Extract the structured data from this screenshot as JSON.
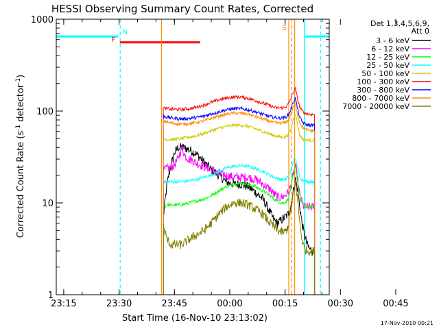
{
  "chart_data": {
    "type": "line",
    "title": "HESSI Observing Summary Count Rates, Corrected",
    "xlabel": "Start Time (16-Nov-10 23:13:02)",
    "ylabel_main": "Corrected Count Rate (s",
    "ylabel_sup1": "-1",
    "ylabel_mid": " detector",
    "ylabel_sup2": "-1",
    "ylabel_end": ")",
    "y_scale": "log",
    "ylim": [
      1,
      1000
    ],
    "xlim_minutes": [
      -2.03,
      71.97
    ],
    "x_ticks": [
      {
        "label": "23:15",
        "m": 0
      },
      {
        "label": "23:30",
        "m": 15
      },
      {
        "label": "23:45",
        "m": 30
      },
      {
        "label": "00:00",
        "m": 45
      },
      {
        "label": "00:15",
        "m": 60
      },
      {
        "label": "00:30",
        "m": 75
      },
      {
        "label": "00:45",
        "m": 90
      }
    ],
    "y_ticks": [
      {
        "label": "1",
        "v": 1
      },
      {
        "label": "10",
        "v": 10
      },
      {
        "label": "100",
        "v": 100
      },
      {
        "label": "1000",
        "v": 1000
      }
    ],
    "legend_header": [
      "Det 1,3,4,5,6,9,",
      "Att 0"
    ],
    "legend_position": "right",
    "series": [
      {
        "name": "3 - 6 keV",
        "color": "#000000",
        "x_min": [
          27.0,
          28.0,
          29.0,
          30.0,
          31.0,
          32.5,
          34.0,
          36.0,
          38.0,
          40.0,
          42.0,
          44.0,
          46.0,
          48.0,
          50.0,
          52.0,
          54.0,
          55.5,
          57.0,
          58.0,
          59.0,
          60.0,
          60.8,
          61.5,
          62.2,
          62.8,
          63.4,
          64.0,
          64.6,
          65.2,
          66.0,
          67.0,
          68.0
        ],
        "values": [
          7.0,
          16.0,
          25.0,
          35.0,
          40.0,
          40.0,
          38.0,
          34.0,
          28.0,
          23.0,
          20.0,
          17.0,
          16.0,
          16.0,
          15.0,
          13.0,
          11.0,
          8.5,
          6.5,
          6.0,
          6.5,
          7.0,
          7.5,
          9.0,
          13.0,
          18.0,
          14.0,
          9.0,
          6.0,
          4.5,
          3.5,
          3.0,
          3.0
        ]
      },
      {
        "name": "6 - 12 keV",
        "color": "#ff00ff",
        "x_min": [
          27.0,
          28.0,
          29.0,
          30.0,
          31.0,
          32.0,
          33.0,
          34.0,
          35.0,
          36.0,
          37.0,
          38.0,
          40.0,
          42.0,
          44.0,
          46.0,
          48.0,
          50.0,
          52.0,
          54.0,
          56.0,
          57.0,
          58.0,
          59.0,
          60.0,
          60.8,
          61.5,
          62.2,
          62.8,
          63.4,
          64.0,
          64.6,
          65.2,
          66.0,
          67.0,
          68.0
        ],
        "values": [
          22.0,
          24.0,
          24.0,
          26.0,
          30.0,
          40.0,
          32.0,
          30.0,
          29.0,
          27.0,
          26.0,
          25.0,
          23.0,
          21.0,
          20.0,
          19.0,
          19.0,
          19.0,
          18.0,
          16.0,
          14.0,
          12.5,
          11.5,
          11.5,
          12.0,
          13.0,
          15.0,
          20.0,
          26.0,
          18.0,
          12.0,
          10.0,
          9.0,
          9.0,
          9.0,
          9.0
        ]
      },
      {
        "name": "12 - 25 keV",
        "color": "#00ff00",
        "x_min": [
          27.0,
          28.0,
          30.0,
          32.0,
          34.0,
          36.0,
          38.0,
          40.0,
          42.0,
          44.0,
          46.0,
          48.0,
          50.0,
          52.0,
          54.0,
          56.0,
          57.0,
          58.0,
          59.0,
          60.0,
          60.8,
          61.5,
          62.2,
          62.8,
          63.4,
          64.0,
          64.6,
          65.2,
          66.0,
          67.0,
          68.0
        ],
        "values": [
          9.0,
          9.5,
          9.5,
          9.5,
          10.0,
          10.5,
          11.0,
          12.0,
          13.5,
          15.0,
          16.0,
          16.5,
          16.0,
          15.0,
          13.5,
          12.0,
          11.0,
          10.5,
          10.0,
          10.0,
          11.0,
          14.0,
          20.0,
          26.0,
          17.0,
          12.0,
          10.0,
          9.5,
          9.0,
          9.0,
          9.0
        ]
      },
      {
        "name": "25 - 50 keV",
        "color": "#00ffff",
        "x_min": [
          27.0,
          28.0,
          30.0,
          32.0,
          34.0,
          36.0,
          38.0,
          40.0,
          42.0,
          44.0,
          46.0,
          48.0,
          50.0,
          52.0,
          54.0,
          56.0,
          57.0,
          58.0,
          59.0,
          60.0,
          60.8,
          61.5,
          62.2,
          62.8,
          63.4,
          64.0,
          64.6,
          65.2,
          66.0,
          67.0,
          68.0
        ],
        "values": [
          17.0,
          17.0,
          17.0,
          17.0,
          17.5,
          18.0,
          19.0,
          20.0,
          22.0,
          24.0,
          25.0,
          25.5,
          25.0,
          23.5,
          22.0,
          20.0,
          19.0,
          18.5,
          18.0,
          18.0,
          19.0,
          22.0,
          28.0,
          31.0,
          24.0,
          19.0,
          18.0,
          17.5,
          17.0,
          17.0,
          17.0
        ]
      },
      {
        "name": "50 - 100 keV",
        "color": "#cccc00",
        "x_min": [
          27.0,
          28.0,
          30.0,
          32.0,
          34.0,
          36.0,
          38.0,
          40.0,
          42.0,
          44.0,
          46.0,
          48.0,
          50.0,
          52.0,
          54.0,
          56.0,
          57.0,
          58.0,
          59.0,
          60.0,
          60.8,
          61.5,
          62.2,
          62.8,
          63.4,
          64.0,
          64.6,
          65.2,
          66.0,
          67.0,
          68.0
        ],
        "values": [
          50.0,
          49.0,
          49.0,
          50.0,
          52.0,
          54.0,
          57.0,
          61.0,
          65.0,
          68.0,
          70.0,
          70.0,
          68.0,
          64.0,
          60.0,
          56.0,
          54.0,
          53.0,
          52.0,
          52.0,
          55.0,
          62.0,
          80.0,
          95.0,
          70.0,
          55.0,
          50.0,
          49.0,
          48.0,
          48.0,
          48.0
        ]
      },
      {
        "name": "100 - 300 keV",
        "color": "#ff0000",
        "x_min": [
          27.0,
          28.0,
          30.0,
          32.0,
          34.0,
          36.0,
          38.0,
          40.0,
          42.0,
          44.0,
          46.0,
          48.0,
          50.0,
          52.0,
          54.0,
          56.0,
          57.0,
          58.0,
          59.0,
          60.0,
          60.8,
          61.5,
          62.2,
          62.8,
          63.4,
          64.0,
          64.6,
          65.2,
          66.0,
          67.0,
          68.0
        ],
        "values": [
          108.0,
          106.0,
          104.0,
          104.0,
          106.0,
          110.0,
          116.0,
          124.0,
          132.0,
          138.0,
          142.0,
          142.0,
          138.0,
          130.0,
          122.0,
          114.0,
          110.0,
          108.0,
          108.0,
          110.0,
          118.0,
          135.0,
          160.0,
          175.0,
          135.0,
          110.0,
          100.0,
          96.0,
          93.0,
          92.0,
          92.0
        ]
      },
      {
        "name": "300 - 800 keV",
        "color": "#0000ff",
        "x_min": [
          27.0,
          28.0,
          30.0,
          32.0,
          34.0,
          36.0,
          38.0,
          40.0,
          42.0,
          44.0,
          46.0,
          48.0,
          50.0,
          52.0,
          54.0,
          56.0,
          57.0,
          58.0,
          59.0,
          60.0,
          60.8,
          61.5,
          62.2,
          62.8,
          63.4,
          64.0,
          64.6,
          65.2,
          66.0,
          67.0,
          68.0
        ],
        "values": [
          88.0,
          86.0,
          83.0,
          82.0,
          83.0,
          85.0,
          88.0,
          93.0,
          98.0,
          103.0,
          106.0,
          106.0,
          103.0,
          98.0,
          92.0,
          87.0,
          85.0,
          84.0,
          84.0,
          85.0,
          90.0,
          102.0,
          125.0,
          138.0,
          105.0,
          85.0,
          77.0,
          73.0,
          71.0,
          70.0,
          70.0
        ]
      },
      {
        "name": "800 - 7000 keV",
        "color": "#ff8c00",
        "x_min": [
          27.0,
          28.0,
          30.0,
          32.0,
          34.0,
          36.0,
          38.0,
          40.0,
          42.0,
          44.0,
          46.0,
          48.0,
          50.0,
          52.0,
          54.0,
          56.0,
          57.0,
          58.0,
          59.0,
          60.0,
          60.8,
          61.5,
          62.2,
          62.8,
          63.4,
          64.0,
          64.6,
          65.2,
          66.0,
          67.0,
          68.0
        ],
        "values": [
          78.0,
          76.0,
          73.0,
          72.0,
          73.0,
          75.0,
          78.0,
          83.0,
          88.0,
          92.0,
          95.0,
          95.0,
          92.0,
          87.0,
          82.0,
          77.0,
          75.0,
          74.0,
          74.0,
          75.0,
          79.0,
          90.0,
          110.0,
          120.0,
          92.0,
          75.0,
          68.0,
          64.0,
          62.0,
          61.0,
          61.0
        ]
      },
      {
        "name": "7000 - 20000 keV",
        "color": "#808000",
        "x_min": [
          27.0,
          28.0,
          29.0,
          30.0,
          32.0,
          34.0,
          36.0,
          38.0,
          40.0,
          42.0,
          44.0,
          46.0,
          48.0,
          50.0,
          52.0,
          54.0,
          56.0,
          57.0,
          58.0,
          59.0,
          60.0,
          60.8,
          61.5,
          62.2,
          62.8,
          63.4,
          64.0,
          64.6,
          65.2,
          66.0,
          67.0,
          68.0
        ],
        "values": [
          5.5,
          4.0,
          3.5,
          3.5,
          3.5,
          4.0,
          4.5,
          5.0,
          6.0,
          7.5,
          9.0,
          10.0,
          10.0,
          9.5,
          8.5,
          7.5,
          6.0,
          5.5,
          5.0,
          4.8,
          4.8,
          5.5,
          8.0,
          12.0,
          17.0,
          11.0,
          6.0,
          4.0,
          3.2,
          3.0,
          3.0,
          3.0
        ]
      }
    ],
    "annotations": [
      {
        "label": "N",
        "color": "#00ffff",
        "x_min": 15.0
      },
      {
        "label": "F",
        "color": "#ff0000",
        "x_min": 15.2
      },
      {
        "label": "S",
        "color": "#ff8c00",
        "x_min": 61.8
      }
    ],
    "overlays": {
      "flare_bar": {
        "color": "#ff0000",
        "x_min": [
          15.2,
          37.0
        ],
        "value": 560
      },
      "night_bars": {
        "color": "#00ffff",
        "ranges_min": [
          [
            -2.03,
            14.8
          ],
          [
            65.3,
            71.97
          ]
        ],
        "value": 650
      },
      "attenuator_lines": {
        "color": "#ff8c00",
        "x_min": [
          26.5,
          61.0,
          62.6
        ]
      },
      "saa_dashed": {
        "color": "#ff8c00",
        "x_min": 61.8
      },
      "night_lines": {
        "color": "#00ffff",
        "x_min": [
          65.3
        ]
      },
      "night_dashed": {
        "color": "#00ffff",
        "x_min": [
          15.3,
          69.6
        ]
      }
    }
  },
  "footer": {
    "timestamp": "17-Nov-2010 00:21"
  }
}
